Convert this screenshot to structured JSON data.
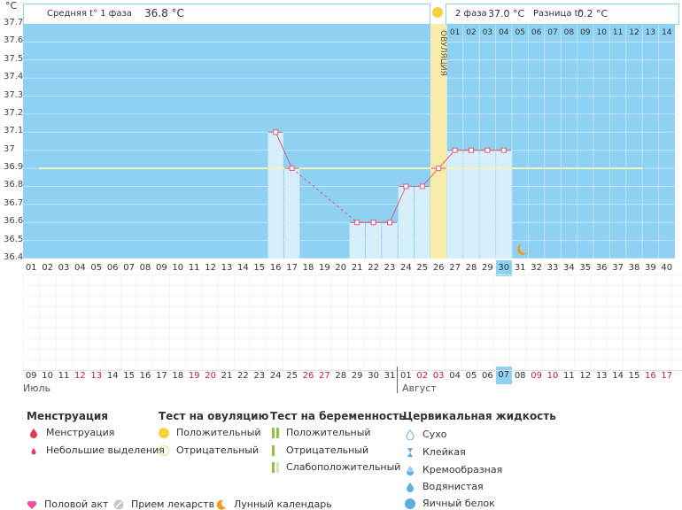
{
  "chart_data": {
    "type": "line",
    "unit": "°C",
    "ylim": [
      36.4,
      37.7
    ],
    "yticks": [
      "36.4",
      "36.5",
      "36.6",
      "36.7",
      "36.8",
      "36.9",
      "37",
      "37.1",
      "37.2",
      "37.3",
      "37.4",
      "37.5",
      "37.6",
      "37.7"
    ],
    "cycle_days": [
      "01",
      "02",
      "03",
      "04",
      "05",
      "06",
      "07",
      "08",
      "09",
      "10",
      "11",
      "12",
      "13",
      "14",
      "15",
      "16",
      "17",
      "18",
      "19",
      "20",
      "21",
      "22",
      "23",
      "24",
      "25",
      "26",
      "27",
      "28",
      "29",
      "30",
      "31",
      "32",
      "33",
      "34",
      "35",
      "36",
      "37",
      "38",
      "39",
      "40"
    ],
    "dates": [
      "09",
      "10",
      "11",
      "12",
      "13",
      "14",
      "15",
      "16",
      "17",
      "18",
      "19",
      "20",
      "21",
      "22",
      "23",
      "24",
      "25",
      "26",
      "27",
      "28",
      "29",
      "30",
      "31",
      "01",
      "02",
      "03",
      "04",
      "05",
      "06",
      "07",
      "08",
      "09",
      "10",
      "11",
      "12",
      "13",
      "14",
      "15",
      "16",
      "17"
    ],
    "date_colors": [
      "#333",
      "#333",
      "#333",
      "#c2185b",
      "#c2185b",
      "#333",
      "#333",
      "#333",
      "#333",
      "#333",
      "#c2185b",
      "#c2185b",
      "#333",
      "#333",
      "#333",
      "#333",
      "#333",
      "#c2185b",
      "#c2185b",
      "#333",
      "#333",
      "#333",
      "#333",
      "#333",
      "#c2185b",
      "#c2185b",
      "#333",
      "#333",
      "#333",
      "#333",
      "#333",
      "#c2185b",
      "#c2185b",
      "#333",
      "#333",
      "#333",
      "#333",
      "#333",
      "#c2185b",
      "#c2185b"
    ],
    "months": [
      "Июль",
      "Август"
    ],
    "temps": [
      null,
      null,
      null,
      null,
      null,
      null,
      null,
      null,
      null,
      null,
      null,
      null,
      null,
      null,
      null,
      37.1,
      36.9,
      null,
      null,
      null,
      36.6,
      36.6,
      36.6,
      36.8,
      36.8,
      36.9,
      37.0,
      37.0,
      37.0,
      37.0,
      null,
      null,
      null,
      null,
      null,
      null,
      null,
      null,
      null,
      null
    ],
    "coverline": 36.9,
    "ovulation_day": 26,
    "ovulation_label": "ОВУЛЯЦИЯ",
    "current_day": 30,
    "phase2_day_labels": [
      "01",
      "02",
      "03",
      "04",
      "05",
      "06",
      "07",
      "08",
      "09",
      "10",
      "11",
      "12",
      "13",
      "14"
    ],
    "phase1_text": "Средняя t° 1 фаза",
    "phase1_value": "36.8 °C",
    "phase2_text": "2 фаза",
    "phase2_value": "37.0 °C",
    "diff_text": "Разница t°",
    "diff_value": "0.2 °C",
    "colors": {
      "bg": "#8ed1f2",
      "bar": "#d6effb",
      "line": "#e05a7a",
      "cover": "#f4f2b8",
      "ovulation": "#f7ecaa",
      "highlight": "#8ed1f2"
    }
  },
  "legend": {
    "menstruation": {
      "title": "Менструация",
      "items": [
        "Менструация",
        "Небольшие выделения"
      ]
    },
    "ovulation_test": {
      "title": "Тест на овуляцию",
      "items": [
        "Положительный",
        "Отрицательный"
      ]
    },
    "pregnancy_test": {
      "title": "Тест на беременность",
      "items": [
        "Положительный",
        "Отрицательный",
        "Слабоположительный"
      ]
    },
    "cervical": {
      "title": "Цервикальная жидкость",
      "items": [
        "Сухо",
        "Клейкая",
        "Кремообразная",
        "Водянистая",
        "Яичный белок"
      ]
    },
    "other": [
      "Половой акт",
      "Прием лекарств",
      "Лунный календарь"
    ]
  }
}
